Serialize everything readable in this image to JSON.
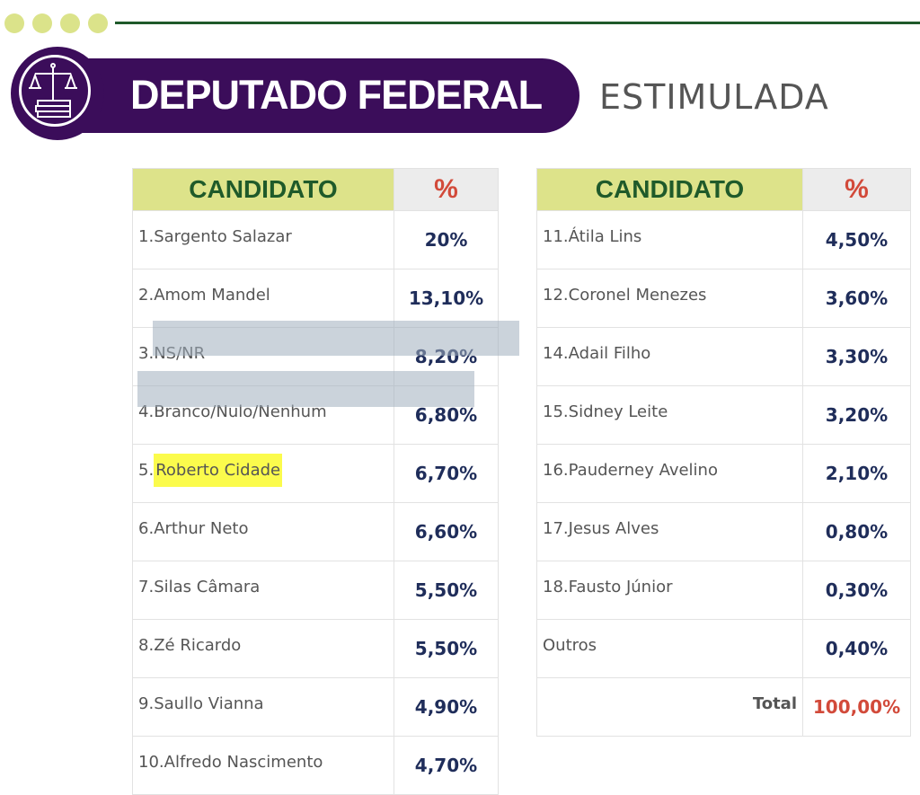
{
  "header": {
    "title": "DEPUTADO FEDERAL",
    "subtitle": "ESTIMULADA",
    "icon": "scales-of-justice-books-icon"
  },
  "columns": {
    "candidate": "CANDIDATO",
    "percent": "%"
  },
  "left_table": [
    {
      "num": "1.",
      "name": "Sargento Salazar",
      "value": "20%"
    },
    {
      "num": "2.",
      "name": "Amom Mandel",
      "value": "13,10%"
    },
    {
      "num": "3.",
      "name": "NS/NR",
      "value": "8,20%"
    },
    {
      "num": "4.",
      "name": "Branco/Nulo/Nenhum",
      "value": "6,80%"
    },
    {
      "num": "5.",
      "name": "Roberto Cidade",
      "value": "6,70%",
      "highlight": true
    },
    {
      "num": "6.",
      "name": "Arthur Neto",
      "value": "6,60%"
    },
    {
      "num": "7.",
      "name": "Silas Câmara",
      "value": "5,50%"
    },
    {
      "num": "8.",
      "name": "Zé Ricardo",
      "value": "5,50%"
    },
    {
      "num": "9.",
      "name": "Saullo Vianna",
      "value": "4,90%"
    },
    {
      "num": "10.",
      "name": "Alfredo Nascimento",
      "value": "4,70%"
    }
  ],
  "right_table": [
    {
      "num": "11.",
      "name": "Átila Lins",
      "value": "4,50%"
    },
    {
      "num": "12.",
      "name": "Coronel Menezes",
      "value": "3,60%"
    },
    {
      "num": "14.",
      "name": "Adail Filho",
      "value": "3,30%"
    },
    {
      "num": "15.",
      "name": "Sidney Leite",
      "value": "3,20%"
    },
    {
      "num": "16.",
      "name": "Pauderney Avelino",
      "value": "2,10%"
    },
    {
      "num": "17.",
      "name": "Jesus Alves",
      "value": "0,80%"
    },
    {
      "num": "18.",
      "name": "Fausto Júnior",
      "value": "0,30%"
    },
    {
      "num": "",
      "name": "Outros",
      "value": "0,40%"
    }
  ],
  "total": {
    "label": "Total",
    "value": "100,00%"
  },
  "colors": {
    "purple": "#3b0d5a",
    "green": "#1f5a2a",
    "lime": "#dde38a",
    "red": "#d24a3a",
    "navy": "#1f2d5a"
  }
}
